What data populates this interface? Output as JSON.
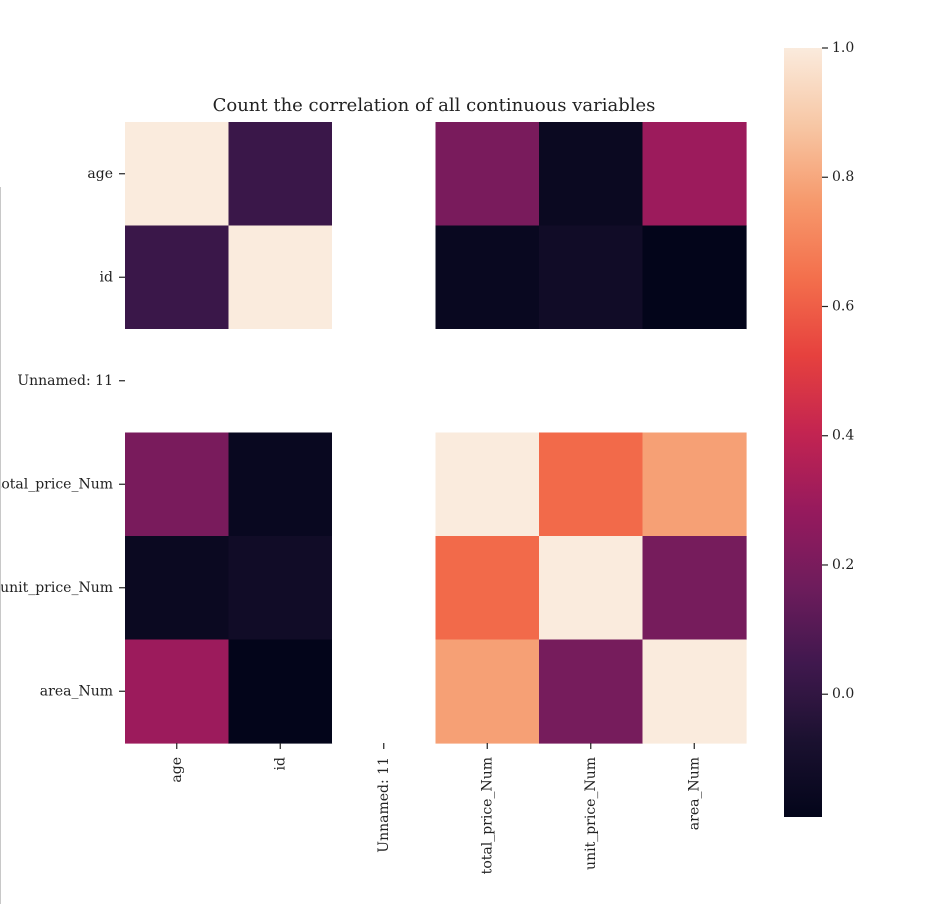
{
  "chart_data": {
    "type": "heatmap",
    "title": "Count the correlation of all continuous variables",
    "rows": [
      "age",
      "id",
      "Unnamed: 11",
      "total_price_Num",
      "unit_price_Num",
      "area_Num"
    ],
    "cols": [
      "age",
      "id",
      "Unnamed: 11",
      "total_price_Num",
      "unit_price_Num",
      "area_Num"
    ],
    "values": [
      [
        1.0,
        0.03,
        null,
        0.2,
        -0.15,
        0.3
      ],
      [
        0.03,
        1.0,
        null,
        -0.16,
        -0.12,
        -0.19
      ],
      [
        null,
        null,
        null,
        null,
        null,
        null
      ],
      [
        0.2,
        -0.16,
        null,
        1.0,
        0.63,
        0.78
      ],
      [
        -0.15,
        -0.12,
        null,
        0.63,
        1.0,
        0.19
      ],
      [
        0.3,
        -0.19,
        null,
        0.78,
        0.19,
        1.0
      ]
    ],
    "colorbar": {
      "colormap": "rocket",
      "min": -0.19,
      "max": 1.0,
      "ticks": [
        "1.0",
        "0.8",
        "0.6",
        "0.4",
        "0.2",
        "0.0"
      ],
      "tick_values": [
        1.0,
        0.8,
        0.6,
        0.4,
        0.2,
        0.0
      ]
    },
    "missing_color": "#ffffff"
  }
}
